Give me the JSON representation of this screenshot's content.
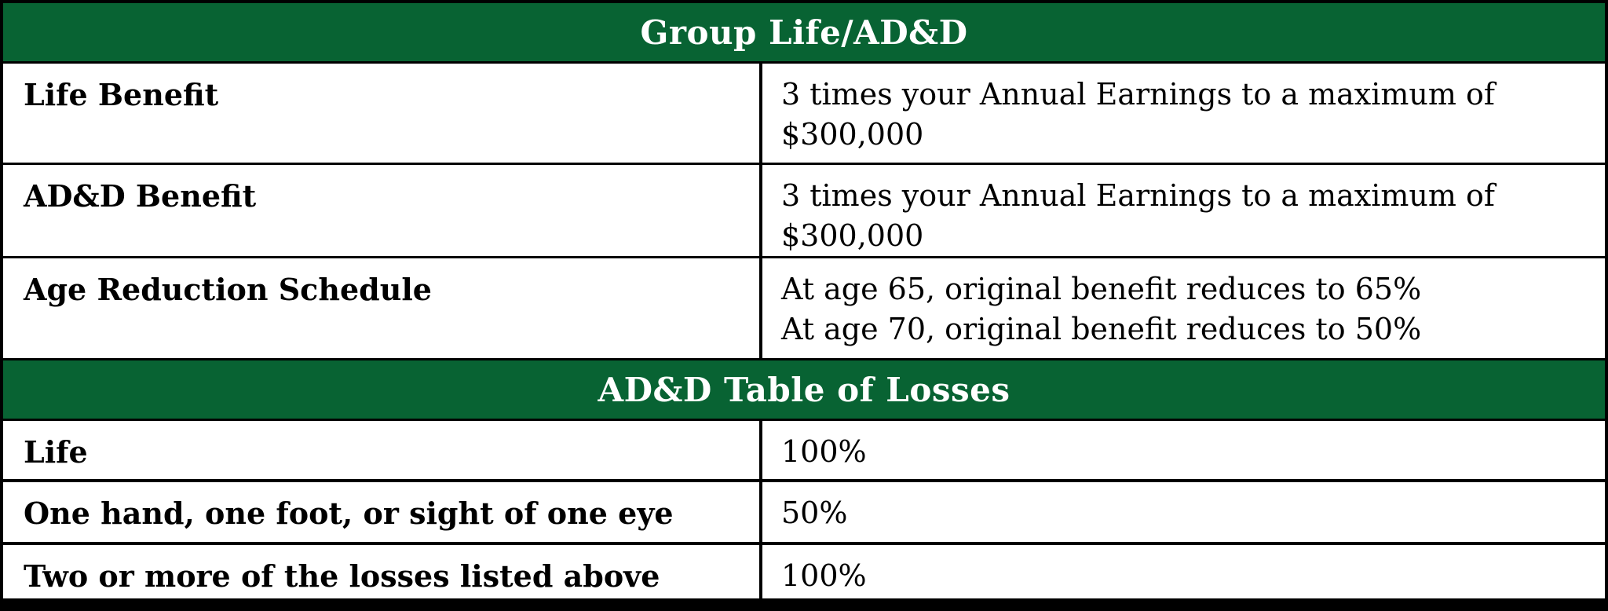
{
  "colors": {
    "section_header_bg": "#086333",
    "section_header_text": "#ffffff",
    "border": "#000000",
    "body_text": "#000000"
  },
  "sections": [
    {
      "title": "Group Life/AD&D",
      "rows": [
        {
          "label": "Life Benefit",
          "values": [
            "3 times your Annual Earnings to a maximum of $300,000"
          ]
        },
        {
          "label": "AD&D Benefit",
          "values": [
            "3 times your Annual Earnings to a maximum of $300,000"
          ]
        },
        {
          "label": "Age Reduction Schedule",
          "values": [
            "At age 65, original benefit reduces to 65%",
            "At age 70, original benefit reduces to 50%"
          ]
        }
      ]
    },
    {
      "title": "AD&D Table of Losses",
      "rows": [
        {
          "label": "Life",
          "values": [
            "100%"
          ]
        },
        {
          "label": "One hand, one foot, or sight of one eye",
          "values": [
            "50%"
          ]
        },
        {
          "label": "Two or more of the losses listed above",
          "values": [
            "100%"
          ]
        }
      ]
    }
  ]
}
